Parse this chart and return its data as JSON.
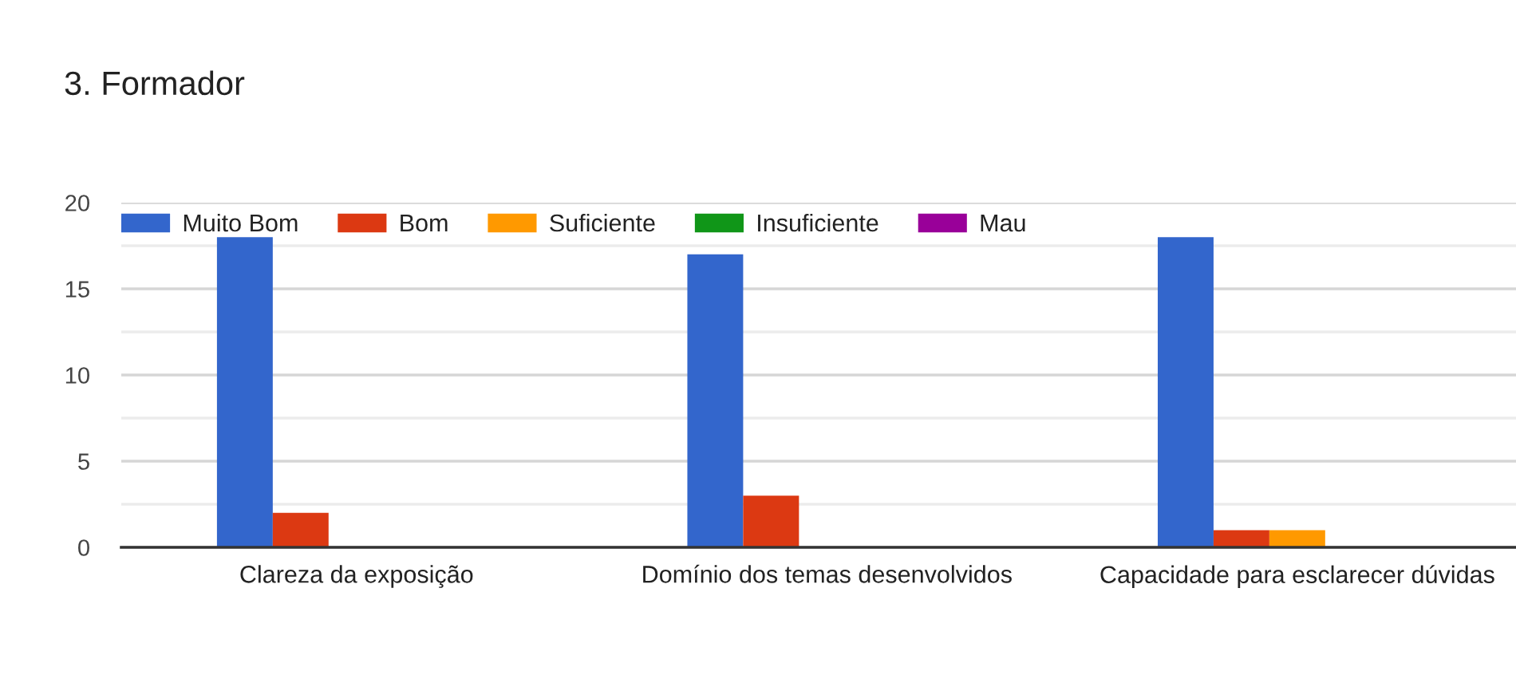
{
  "chart_data": {
    "type": "bar",
    "title": "3. Formador",
    "categories": [
      "Clareza da exposição",
      "Domínio dos temas desenvolvidos",
      "Capacidade para esclarecer dúvidas"
    ],
    "series": [
      {
        "name": "Muito Bom",
        "color": "#3366cc",
        "values": [
          18,
          17,
          18
        ]
      },
      {
        "name": "Bom",
        "color": "#dc3912",
        "values": [
          2,
          3,
          1
        ]
      },
      {
        "name": "Suficiente",
        "color": "#ff9900",
        "values": [
          0,
          0,
          1
        ]
      },
      {
        "name": "Insuficiente",
        "color": "#109618",
        "values": [
          0,
          0,
          0
        ]
      },
      {
        "name": "Mau",
        "color": "#990099",
        "values": [
          0,
          0,
          0
        ]
      }
    ],
    "ylim": [
      0,
      20
    ],
    "yticks": [
      0,
      {
        "value": 2.5,
        "label": null
      },
      5,
      {
        "value": 7.5,
        "label": null
      },
      10,
      {
        "value": 12.5,
        "label": null
      },
      15,
      {
        "value": 17.5,
        "label": null
      },
      20
    ],
    "grid": "y",
    "legend": "top left"
  }
}
